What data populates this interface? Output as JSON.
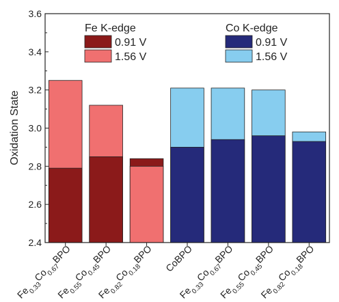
{
  "chart_data": {
    "type": "bar",
    "ylabel": "Oxidation State",
    "ylim": [
      2.4,
      3.6
    ],
    "yticks": [
      "2.4",
      "2.6",
      "2.8",
      "3.0",
      "3.2",
      "3.4",
      "3.6"
    ],
    "categories": [
      {
        "parts": [
          [
            "Fe",
            false
          ],
          [
            "0.33",
            true
          ],
          [
            "Co",
            false
          ],
          [
            "0.67",
            true
          ],
          [
            "BPO",
            false
          ]
        ]
      },
      {
        "parts": [
          [
            "Fe",
            false
          ],
          [
            "0.55",
            true
          ],
          [
            "Co",
            false
          ],
          [
            "0.45",
            true
          ],
          [
            "BPO",
            false
          ]
        ]
      },
      {
        "parts": [
          [
            "Fe",
            false
          ],
          [
            "0.82",
            true
          ],
          [
            "Co",
            false
          ],
          [
            "0.18",
            true
          ],
          [
            "BPO",
            false
          ]
        ]
      },
      {
        "parts": [
          [
            "CoBPO",
            false
          ]
        ]
      },
      {
        "parts": [
          [
            "Fe",
            false
          ],
          [
            "0.33",
            true
          ],
          [
            "Co",
            false
          ],
          [
            "0.67",
            true
          ],
          [
            "BPO",
            false
          ]
        ]
      },
      {
        "parts": [
          [
            "Fe",
            false
          ],
          [
            "0.55",
            true
          ],
          [
            "Co",
            false
          ],
          [
            "0.45",
            true
          ],
          [
            "BPO",
            false
          ]
        ]
      },
      {
        "parts": [
          [
            "Fe",
            false
          ],
          [
            "0.82",
            true
          ],
          [
            "Co",
            false
          ],
          [
            "0.18",
            true
          ],
          [
            "BPO",
            false
          ]
        ]
      }
    ],
    "groups": [
      {
        "title": "Fe K-edge",
        "series": [
          {
            "name": "0.91 V",
            "color": "#8b1a1a"
          },
          {
            "name": "1.56 V",
            "color": "#f07070"
          }
        ]
      },
      {
        "title": "Co K-edge",
        "series": [
          {
            "name": "0.91 V",
            "color": "#252a7a"
          },
          {
            "name": "1.56 V",
            "color": "#87cdef"
          }
        ]
      }
    ],
    "bars": [
      {
        "category": 0,
        "element": "Fe",
        "v091": 2.79,
        "v156": 3.25
      },
      {
        "category": 1,
        "element": "Fe",
        "v091": 2.85,
        "v156": 3.12
      },
      {
        "category": 2,
        "element": "Fe",
        "v091": 2.84,
        "v156": 2.8
      },
      {
        "category": 3,
        "element": "Co",
        "v091": 2.9,
        "v156": 3.21
      },
      {
        "category": 4,
        "element": "Co",
        "v091": 2.94,
        "v156": 3.21
      },
      {
        "category": 5,
        "element": "Co",
        "v091": 2.96,
        "v156": 3.2
      },
      {
        "category": 6,
        "element": "Co",
        "v091": 2.93,
        "v156": 2.98
      }
    ]
  }
}
